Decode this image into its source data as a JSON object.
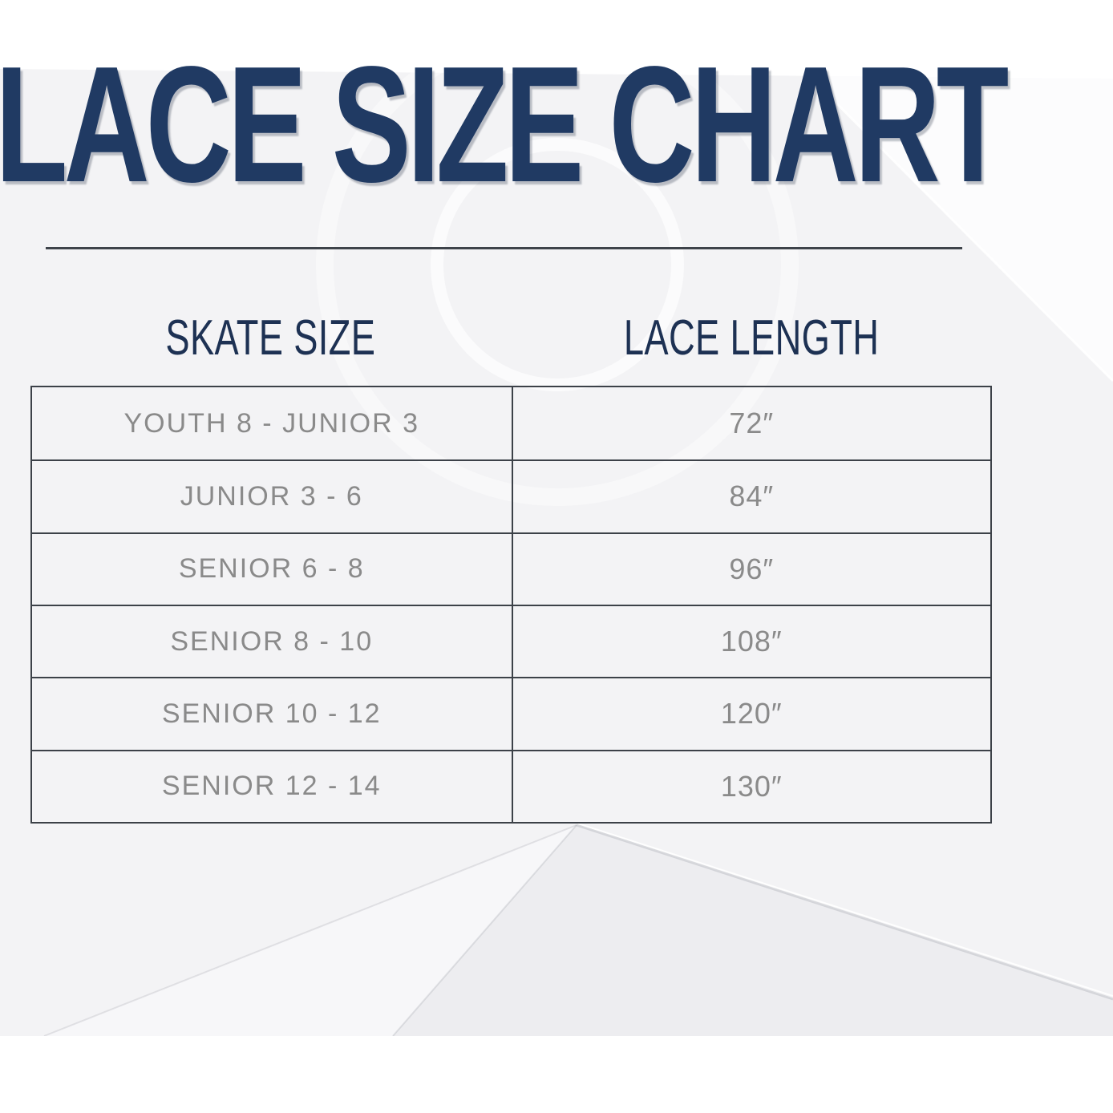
{
  "page": {
    "title": "LACE SIZE CHART"
  },
  "table": {
    "headers": {
      "skate_size": "SKATE SIZE",
      "lace_length": "LACE LENGTH"
    },
    "rows": [
      {
        "skate_size": "YOUTH 8 - JUNIOR 3",
        "lace_length": "72″"
      },
      {
        "skate_size": "JUNIOR 3 - 6",
        "lace_length": "84″"
      },
      {
        "skate_size": "SENIOR 6 - 8",
        "lace_length": "96″"
      },
      {
        "skate_size": "SENIOR 8 - 10",
        "lace_length": "108″"
      },
      {
        "skate_size": "SENIOR 10 - 12",
        "lace_length": "120″"
      },
      {
        "skate_size": "SENIOR 12 - 14",
        "lace_length": "130″"
      }
    ]
  },
  "colors": {
    "title_navy": "#203a63",
    "header_navy": "#1d3153",
    "row_text_gray": "#8a8a8a",
    "table_border": "#3c4148",
    "page_background": "#f3f3f5"
  },
  "chart_data": {
    "type": "table",
    "title": "LACE SIZE CHART",
    "columns": [
      "SKATE SIZE",
      "LACE LENGTH"
    ],
    "rows": [
      [
        "YOUTH 8 - JUNIOR 3",
        "72″"
      ],
      [
        "JUNIOR 3 - 6",
        "84″"
      ],
      [
        "SENIOR 6 - 8",
        "96″"
      ],
      [
        "SENIOR 8 - 10",
        "108″"
      ],
      [
        "SENIOR 10 - 12",
        "120″"
      ],
      [
        "SENIOR 12 - 14",
        "130″"
      ]
    ],
    "lace_length_inches": [
      72,
      84,
      96,
      108,
      120,
      130
    ]
  }
}
